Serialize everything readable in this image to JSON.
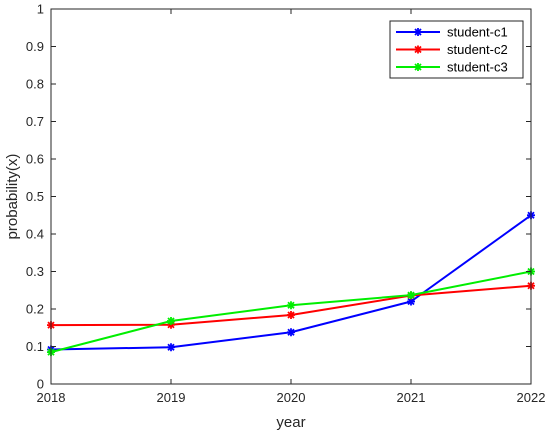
{
  "chart_data": {
    "type": "line",
    "x": [
      2018,
      2019,
      2020,
      2021,
      2022
    ],
    "x_tick_labels": [
      "2018",
      "2019",
      "2020",
      "2021",
      "2022"
    ],
    "xlabel": "year",
    "ylabel": "probability(x)",
    "xlim": [
      2018,
      2022
    ],
    "ylim": [
      0,
      1
    ],
    "y_ticks": [
      0,
      0.1,
      0.2,
      0.3,
      0.4,
      0.5,
      0.6,
      0.7,
      0.8,
      0.9,
      1
    ],
    "y_tick_labels": [
      "0",
      "0.1",
      "0.2",
      "0.3",
      "0.4",
      "0.5",
      "0.6",
      "0.7",
      "0.8",
      "0.9",
      "1"
    ],
    "grid": false,
    "legend_position": "top-right",
    "marker": "asterisk",
    "series": [
      {
        "name": "student-c1",
        "color": "#0000ff",
        "values": [
          0.092,
          0.098,
          0.138,
          0.22,
          0.45
        ]
      },
      {
        "name": "student-c2",
        "color": "#ff0000",
        "values": [
          0.157,
          0.158,
          0.184,
          0.236,
          0.262
        ]
      },
      {
        "name": "student-c3",
        "color": "#00ee00",
        "values": [
          0.085,
          0.168,
          0.21,
          0.237,
          0.3
        ]
      }
    ]
  }
}
